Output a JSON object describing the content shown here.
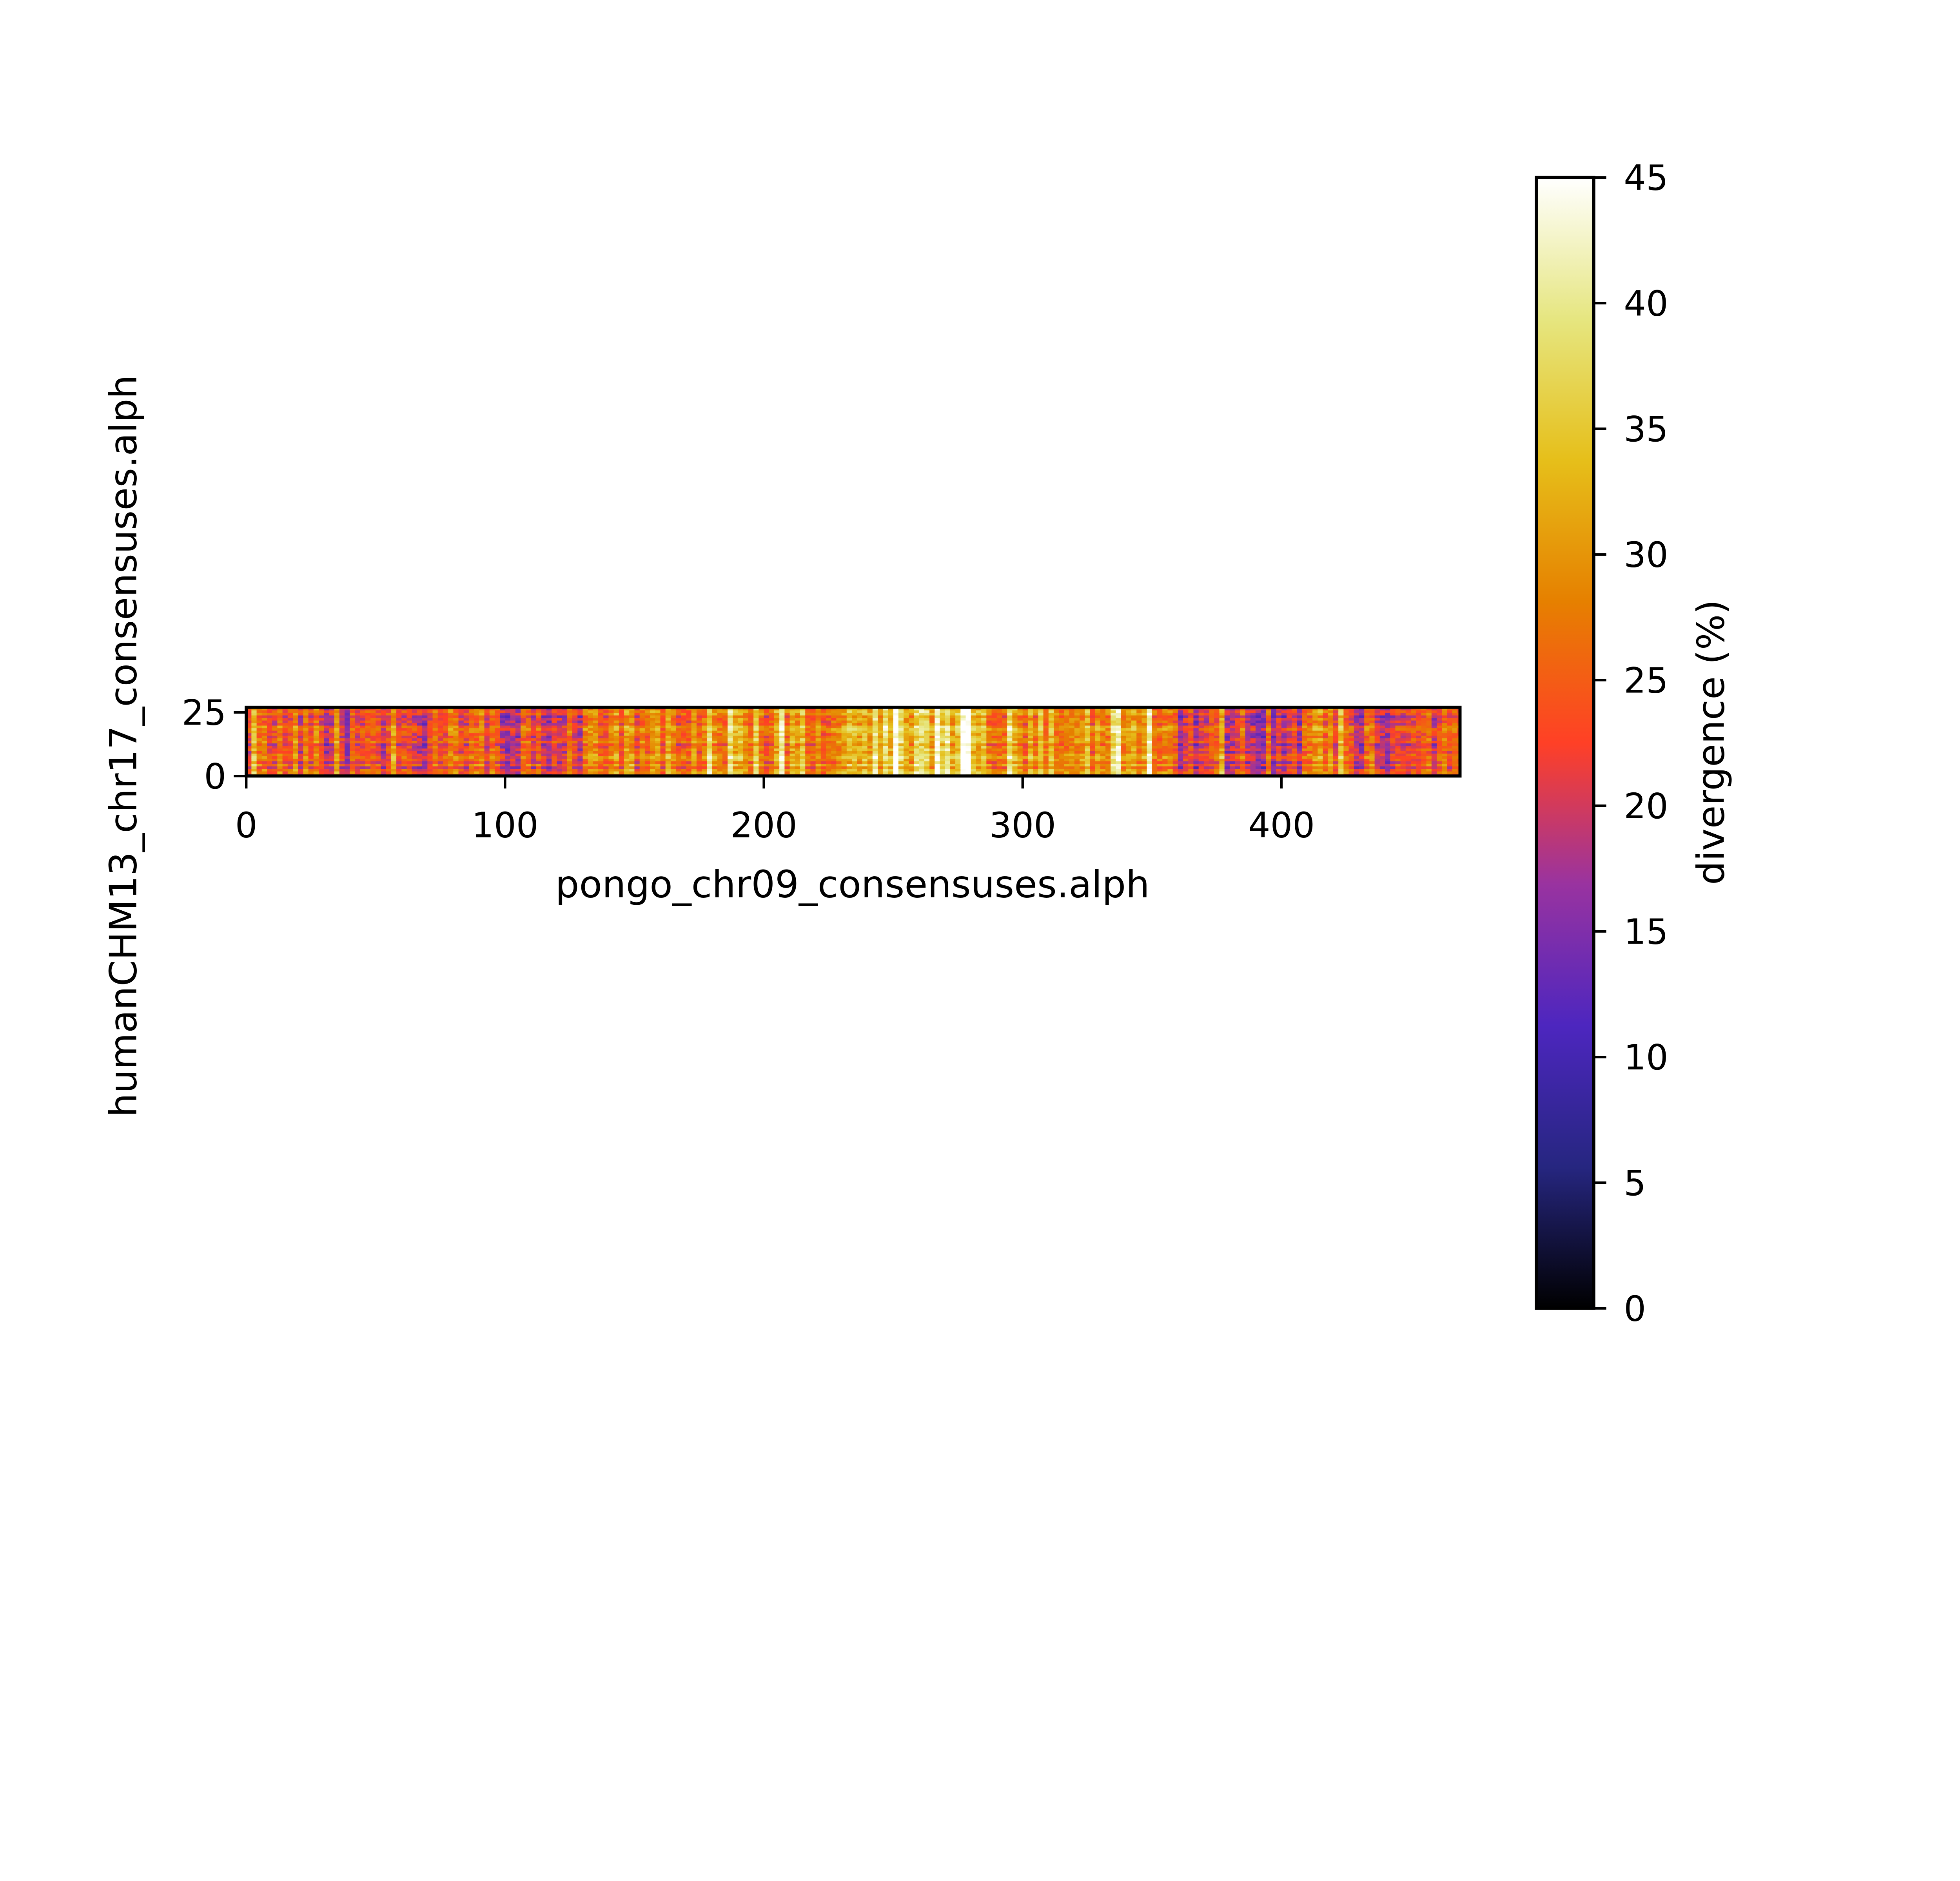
{
  "chart_data": {
    "type": "heatmap",
    "xlabel": "pongo_chr09_consensuses.alph",
    "ylabel": "humanCHM13_chr17_consensuses.alph",
    "x_range": [
      0,
      469
    ],
    "y_range": [
      0,
      27
    ],
    "x_ticks": [
      0,
      100,
      200,
      300,
      400
    ],
    "y_ticks": [
      0,
      25
    ],
    "colorbar": {
      "label": "divergence (%)",
      "range": [
        0,
        45
      ],
      "ticks": [
        0,
        5,
        10,
        15,
        20,
        25,
        30,
        35,
        40,
        45
      ],
      "colormap": "CMRmap"
    },
    "column_profile": [
      {
        "x": [
          0,
          30
        ],
        "divergence": 24
      },
      {
        "x": [
          30,
          70
        ],
        "divergence": 21
      },
      {
        "x": [
          70,
          95
        ],
        "divergence": 24
      },
      {
        "x": [
          95,
          130
        ],
        "divergence": 21
      },
      {
        "x": [
          130,
          175
        ],
        "divergence": 27
      },
      {
        "x": [
          175,
          230
        ],
        "divergence": 29
      },
      {
        "x": [
          230,
          285
        ],
        "divergence": 35
      },
      {
        "x": [
          285,
          360
        ],
        "divergence": 30
      },
      {
        "x": [
          360,
          410
        ],
        "divergence": 21
      },
      {
        "x": [
          410,
          420
        ],
        "divergence": 27
      },
      {
        "x": [
          420,
          469
        ],
        "divergence": 22
      }
    ]
  }
}
